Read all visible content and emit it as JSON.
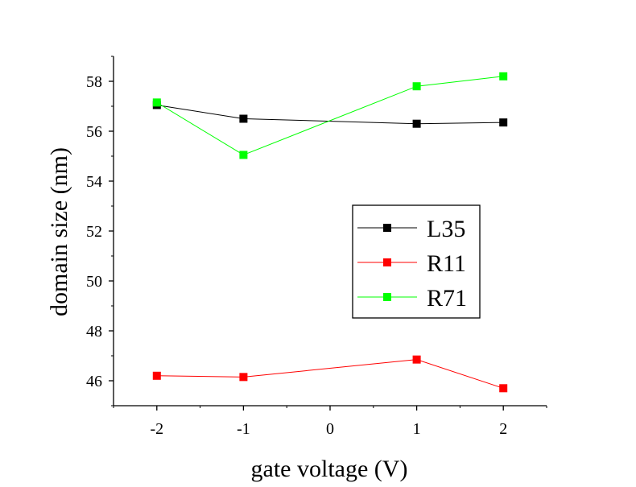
{
  "chart_data": {
    "type": "line",
    "title": "",
    "xlabel": "gate voltage (V)",
    "ylabel": "domain size (nm)",
    "xlim": [
      -2.5,
      2.5
    ],
    "ylim": [
      45,
      59
    ],
    "x_ticks": [
      -2,
      -1,
      0,
      1,
      2
    ],
    "x_tick_labels": [
      "-2",
      "-1",
      "0",
      "1",
      "2"
    ],
    "y_ticks": [
      46,
      48,
      50,
      52,
      54,
      56,
      58
    ],
    "y_tick_labels": [
      "46",
      "48",
      "50",
      "52",
      "54",
      "56",
      "58"
    ],
    "grid": false,
    "legend_position": "center-right",
    "series": [
      {
        "name": "L35",
        "color": "#000000",
        "x": [
          -2,
          -1,
          1,
          2
        ],
        "values": [
          57.05,
          56.5,
          56.3,
          56.35
        ]
      },
      {
        "name": "R11",
        "color": "#ff0000",
        "x": [
          -2,
          -1,
          1,
          2
        ],
        "values": [
          46.2,
          46.15,
          46.85,
          45.7
        ]
      },
      {
        "name": "R71",
        "color": "#00ff00",
        "x": [
          -2,
          -1,
          1,
          2
        ],
        "values": [
          57.15,
          55.05,
          57.8,
          58.2
        ]
      }
    ]
  }
}
